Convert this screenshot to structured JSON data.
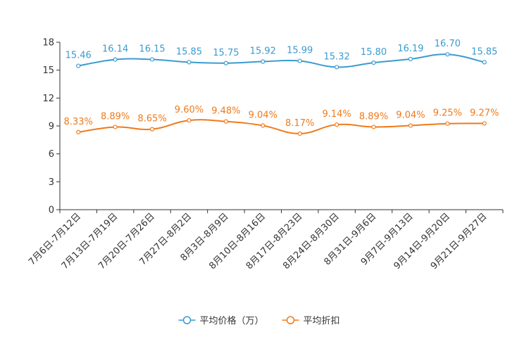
{
  "chart_data": {
    "type": "line",
    "categories": [
      "7月6日-7月12日",
      "7月13日-7月19日",
      "7月20日-7月26日",
      "7月27日-8月2日",
      "8月3日-8月9日",
      "8月10日-8月16日",
      "8月17日-8月23日",
      "8月24日-8月30日",
      "8月31日-9月6日",
      "9月7日-9月13日",
      "9月14日-9月20日",
      "9月21日-9月27日"
    ],
    "series": [
      {
        "name": "平均价格（万）",
        "color": "#3a9bd0",
        "values": [
          15.46,
          16.14,
          16.15,
          15.85,
          15.75,
          15.92,
          15.99,
          15.32,
          15.8,
          16.19,
          16.7,
          15.85
        ],
        "labels": [
          "15.46",
          "16.14",
          "16.15",
          "15.85",
          "15.75",
          "15.92",
          "15.99",
          "15.32",
          "15.80",
          "16.19",
          "16.70",
          "15.85"
        ]
      },
      {
        "name": "平均折扣",
        "color": "#f07a1a",
        "values": [
          8.33,
          8.89,
          8.65,
          9.6,
          9.48,
          9.04,
          8.17,
          9.14,
          8.89,
          9.04,
          9.25,
          9.27
        ],
        "labels": [
          "8.33%",
          "8.89%",
          "8.65%",
          "9.60%",
          "9.48%",
          "9.04%",
          "8.17%",
          "9.14%",
          "8.89%",
          "9.04%",
          "9.25%",
          "9.27%"
        ]
      }
    ],
    "yticks": [
      "0",
      "3",
      "6",
      "9",
      "12",
      "15",
      "18"
    ],
    "ylim": [
      0,
      18
    ],
    "title": "",
    "xlabel": "",
    "ylabel": "",
    "grid": false,
    "legend_position": "bottom-center"
  }
}
